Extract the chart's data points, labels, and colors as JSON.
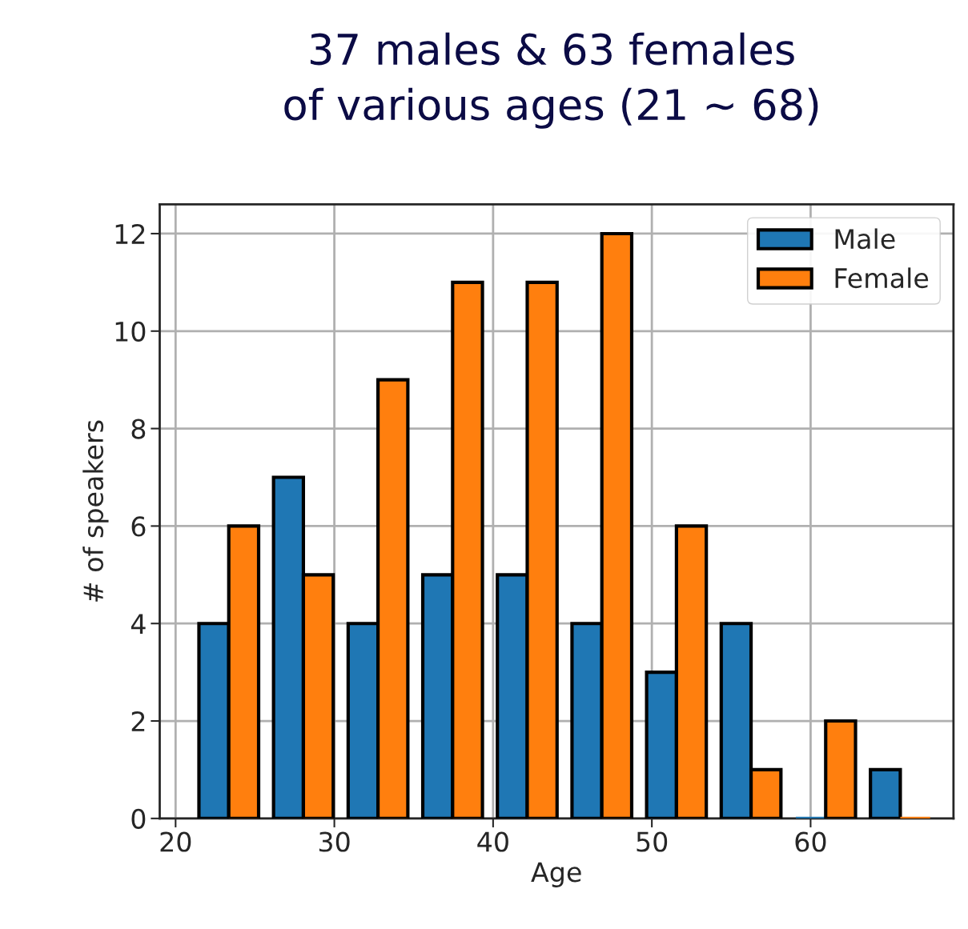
{
  "chart_data": {
    "type": "histogram",
    "title": "37 males & 63 females\nof various ages (21 ~ 68)",
    "xlabel": "Age",
    "ylabel": "# of speakers",
    "bins": [
      21,
      25.7,
      30.4,
      35.1,
      39.8,
      44.5,
      49.2,
      53.9,
      58.6,
      63.3,
      68
    ],
    "series": [
      {
        "name": "Male",
        "color": "#1f77b4",
        "values": [
          4,
          7,
          4,
          5,
          5,
          4,
          3,
          4,
          0,
          1
        ]
      },
      {
        "name": "Female",
        "color": "#ff7f0e",
        "values": [
          6,
          5,
          9,
          11,
          11,
          12,
          6,
          1,
          2,
          0
        ]
      }
    ],
    "xlim": [
      19,
      69
    ],
    "ylim": [
      0,
      12.6
    ],
    "xticks": [
      20,
      30,
      40,
      50,
      60
    ],
    "yticks": [
      0,
      2,
      4,
      6,
      8,
      10,
      12
    ],
    "grid": true,
    "legend": "top right"
  }
}
